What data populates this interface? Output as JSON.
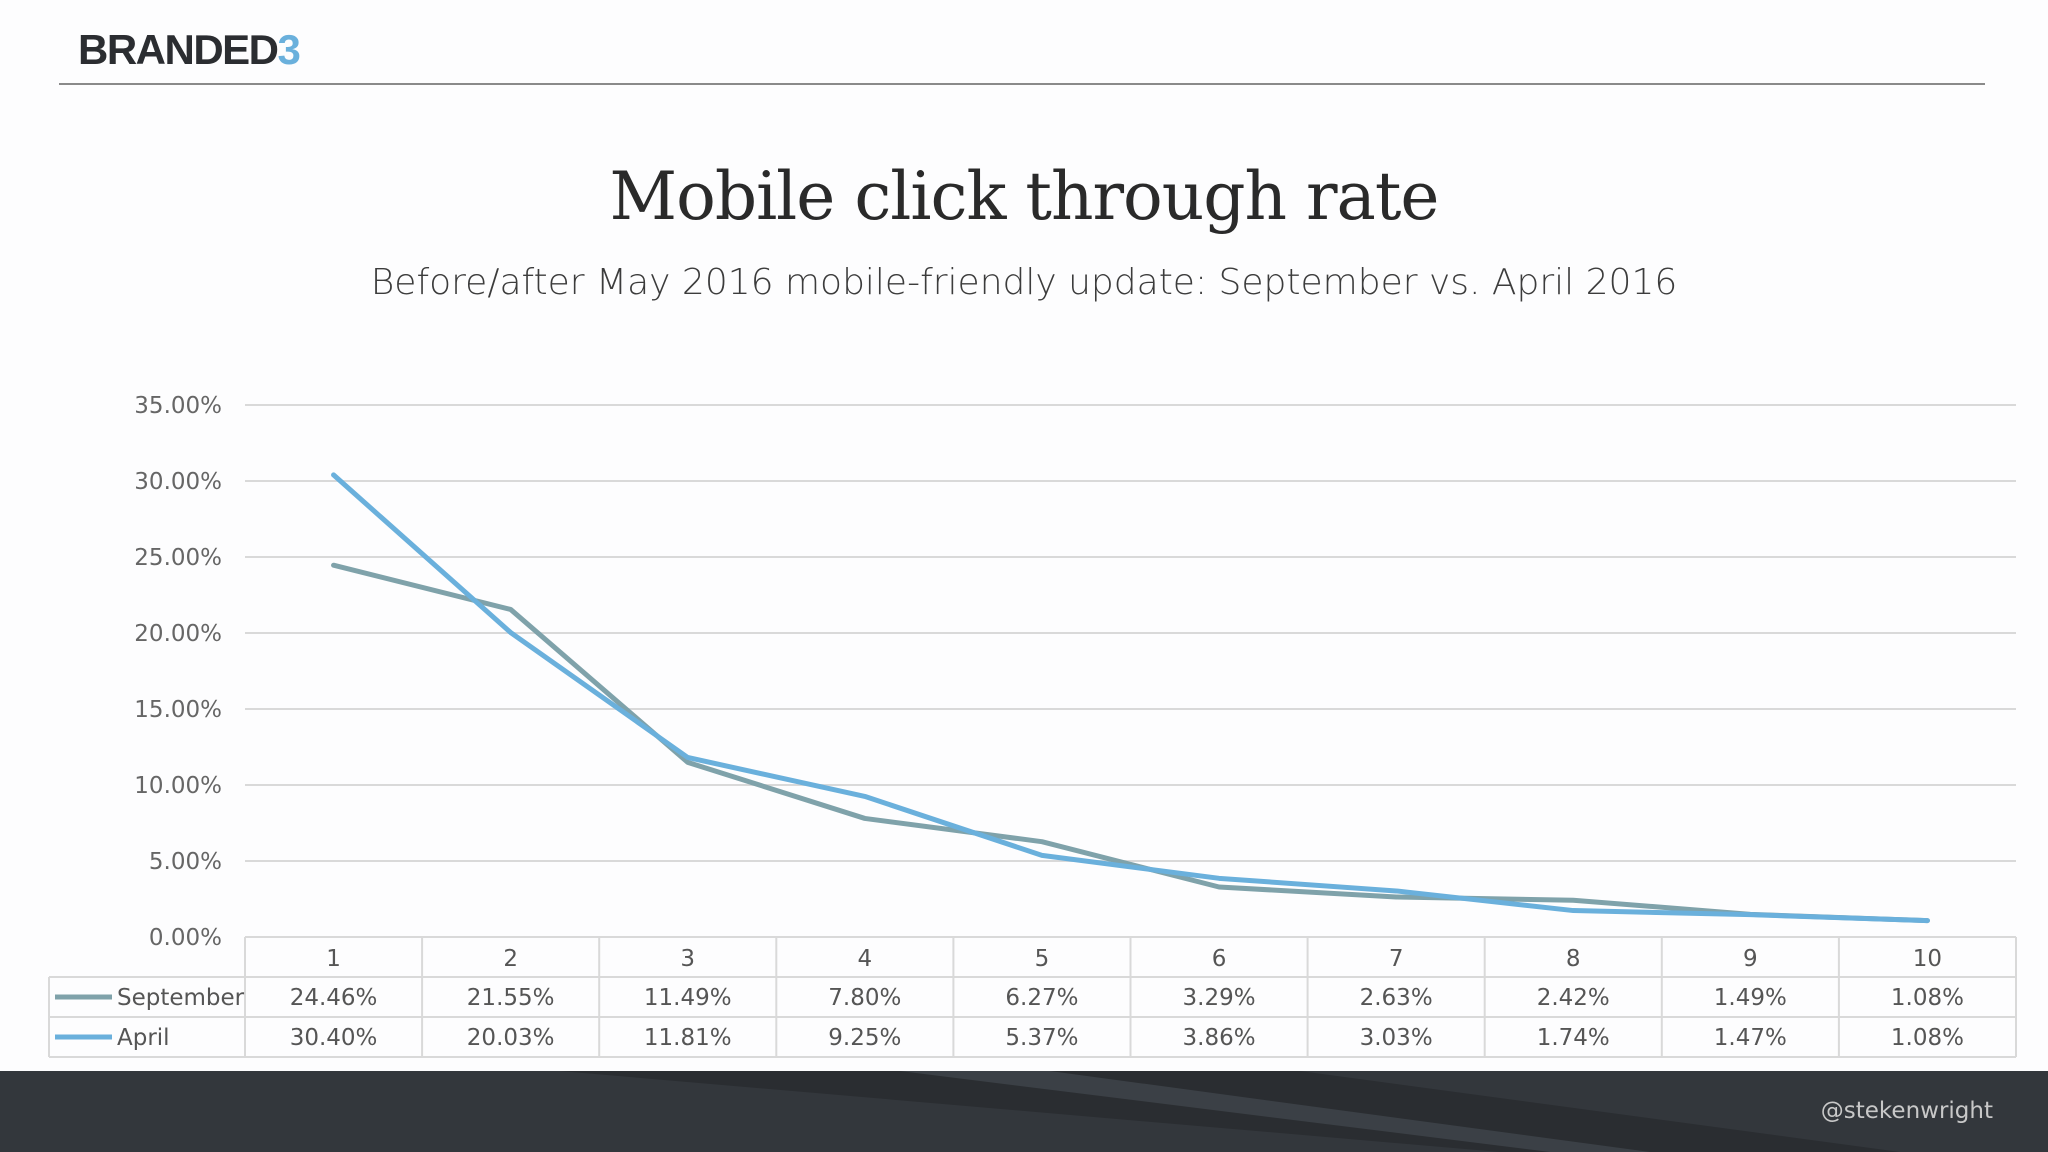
{
  "brand": {
    "name": "BRANDED",
    "number": "3"
  },
  "footer": {
    "handle": "@stekenwright"
  },
  "colors": {
    "september": "#7fa2aa",
    "april": "#6ab0dc",
    "grid": "#d9d9d9"
  },
  "chart_data": {
    "type": "line",
    "title": "Mobile click through rate",
    "subtitle": "Before/after May 2016 mobile-friendly update: September vs. April 2016",
    "categories": [
      "1",
      "2",
      "3",
      "4",
      "5",
      "6",
      "7",
      "8",
      "9",
      "10"
    ],
    "ylim": [
      0,
      35
    ],
    "yticks": [
      "0.00%",
      "5.00%",
      "10.00%",
      "15.00%",
      "20.00%",
      "25.00%",
      "30.00%",
      "35.00%"
    ],
    "series": [
      {
        "name": "September",
        "values": [
          24.46,
          21.55,
          11.49,
          7.8,
          6.27,
          3.29,
          2.63,
          2.42,
          1.49,
          1.08
        ],
        "labels": [
          "24.46%",
          "21.55%",
          "11.49%",
          "7.80%",
          "6.27%",
          "3.29%",
          "2.63%",
          "2.42%",
          "1.49%",
          "1.08%"
        ]
      },
      {
        "name": "April",
        "values": [
          30.4,
          20.03,
          11.81,
          9.25,
          5.37,
          3.86,
          3.03,
          1.74,
          1.47,
          1.08
        ],
        "labels": [
          "30.40%",
          "20.03%",
          "11.81%",
          "9.25%",
          "5.37%",
          "3.86%",
          "3.03%",
          "1.74%",
          "1.47%",
          "1.08%"
        ]
      }
    ],
    "grid": true,
    "legend": "data-table"
  }
}
